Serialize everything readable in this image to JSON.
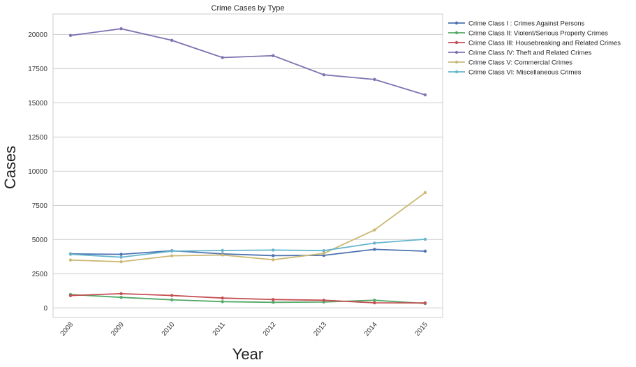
{
  "chart_data": {
    "type": "line",
    "title": "Crime Cases by Type",
    "xlabel": "Year",
    "ylabel": "Cases",
    "categories": [
      "2008",
      "2009",
      "2010",
      "2011",
      "2012",
      "2013",
      "2014",
      "2015"
    ],
    "ylim": [
      -700,
      21500
    ],
    "yticks": [
      0,
      2500,
      5000,
      7500,
      10000,
      12500,
      15000,
      17500,
      20000
    ],
    "grid": "horizontal",
    "legend_position": "outside-top-right",
    "series": [
      {
        "name": "Crime Class I : Crimes Against Persons",
        "color": "#4c72b0",
        "values": [
          3950,
          3920,
          4180,
          3950,
          3820,
          3840,
          4280,
          4150
        ]
      },
      {
        "name": "Crime Class II: Violent/Serious Property Crimes",
        "color": "#55a868",
        "values": [
          980,
          770,
          590,
          460,
          410,
          430,
          560,
          320
        ]
      },
      {
        "name": "Crime Class III: Housebreaking and Related Crimes",
        "color": "#c44e52",
        "values": [
          900,
          1040,
          910,
          720,
          610,
          560,
          370,
          360
        ]
      },
      {
        "name": "Crime Class IV: Theft and Related Crimes",
        "color": "#8172b2",
        "values": [
          19930,
          20420,
          19570,
          18310,
          18450,
          17050,
          16710,
          15580
        ]
      },
      {
        "name": "Crime Class V: Commercial Crimes",
        "color": "#ccb974",
        "values": [
          3500,
          3380,
          3810,
          3870,
          3520,
          3990,
          5700,
          8430
        ]
      },
      {
        "name": "Crime Class VI: Miscellaneous Crimes",
        "color": "#64b5cd",
        "values": [
          3920,
          3710,
          4150,
          4200,
          4230,
          4190,
          4740,
          5020
        ]
      }
    ]
  }
}
